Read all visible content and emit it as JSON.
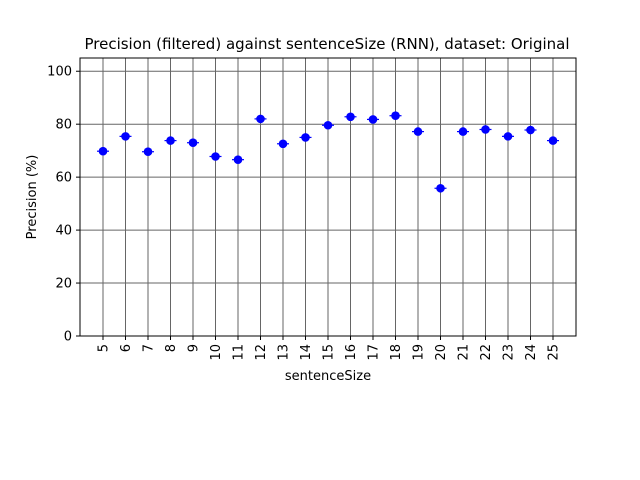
{
  "chart_data": {
    "type": "scatter",
    "title": "Precision (filtered) against sentenceSize (RNN), dataset: Original",
    "xlabel": "sentenceSize",
    "ylabel": "Precision (%)",
    "categories": [
      "5",
      "6",
      "7",
      "8",
      "9",
      "10",
      "11",
      "12",
      "13",
      "14",
      "15",
      "16",
      "17",
      "18",
      "19",
      "20",
      "21",
      "22",
      "23",
      "24",
      "25"
    ],
    "values": [
      69.8,
      75.4,
      69.6,
      73.8,
      73.0,
      67.8,
      66.6,
      82.0,
      72.6,
      75.0,
      79.6,
      82.8,
      81.8,
      83.2,
      77.2,
      55.8,
      77.2,
      78.0,
      75.4,
      77.8,
      73.8
    ],
    "ylim": [
      0,
      105
    ],
    "yticks": [
      0,
      20,
      40,
      60,
      80,
      100
    ],
    "grid": true,
    "marker_color": "#0000ff",
    "grid_color": "#666666"
  }
}
